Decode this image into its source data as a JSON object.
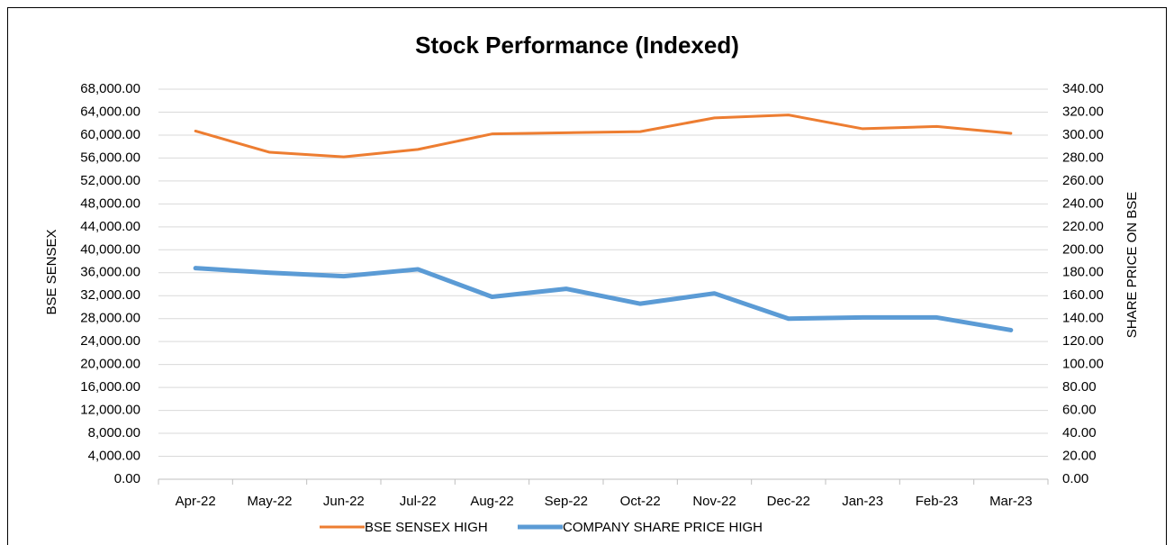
{
  "chart_data": {
    "type": "line",
    "title": "Stock Performance (Indexed)",
    "y_label": "BSE SENSEX",
    "y2_label": "SHARE PRICE ON BSE",
    "categories": [
      "Apr-22",
      "May-22",
      "Jun-22",
      "Jul-22",
      "Aug-22",
      "Sep-22",
      "Oct-22",
      "Nov-22",
      "Dec-22",
      "Jan-23",
      "Feb-23",
      "Mar-23"
    ],
    "series": [
      {
        "name": "BSE SENSEX HIGH",
        "color": "#ed7d31",
        "axis": "y",
        "values": [
          60700,
          57000,
          56200,
          57500,
          60200,
          60400,
          60600,
          63000,
          63500,
          61100,
          61500,
          60300
        ]
      },
      {
        "name": "COMPANY SHARE PRICE HIGH",
        "color": "#5b9bd5",
        "axis": "y2",
        "values": [
          184,
          180,
          177,
          183,
          159,
          166,
          153,
          162,
          140,
          141,
          141,
          130
        ]
      }
    ],
    "ylim": [
      0,
      68000
    ],
    "yticks": [
      {
        "value": 0,
        "label": "0.00"
      },
      {
        "value": 4000,
        "label": "4,000.00"
      },
      {
        "value": 8000,
        "label": "8,000.00"
      },
      {
        "value": 12000,
        "label": "12,000.00"
      },
      {
        "value": 16000,
        "label": "16,000.00"
      },
      {
        "value": 20000,
        "label": "20,000.00"
      },
      {
        "value": 24000,
        "label": "24,000.00"
      },
      {
        "value": 28000,
        "label": "28,000.00"
      },
      {
        "value": 32000,
        "label": "32,000.00"
      },
      {
        "value": 36000,
        "label": "36,000.00"
      },
      {
        "value": 40000,
        "label": "40,000.00"
      },
      {
        "value": 44000,
        "label": "44,000.00"
      },
      {
        "value": 48000,
        "label": "48,000.00"
      },
      {
        "value": 52000,
        "label": "52,000.00"
      },
      {
        "value": 56000,
        "label": "56,000.00"
      },
      {
        "value": 60000,
        "label": "60,000.00"
      },
      {
        "value": 64000,
        "label": "64,000.00"
      },
      {
        "value": 68000,
        "label": "68,000.00"
      }
    ],
    "y2lim": [
      0,
      340
    ],
    "y2ticks": [
      {
        "value": 0,
        "label": "0.00"
      },
      {
        "value": 20,
        "label": "20.00"
      },
      {
        "value": 40,
        "label": "40.00"
      },
      {
        "value": 60,
        "label": "60.00"
      },
      {
        "value": 80,
        "label": "80.00"
      },
      {
        "value": 100,
        "label": "100.00"
      },
      {
        "value": 120,
        "label": "120.00"
      },
      {
        "value": 140,
        "label": "140.00"
      },
      {
        "value": 160,
        "label": "160.00"
      },
      {
        "value": 180,
        "label": "180.00"
      },
      {
        "value": 200,
        "label": "200.00"
      },
      {
        "value": 220,
        "label": "220.00"
      },
      {
        "value": 240,
        "label": "240.00"
      },
      {
        "value": 260,
        "label": "260.00"
      },
      {
        "value": 280,
        "label": "280.00"
      },
      {
        "value": 300,
        "label": "300.00"
      },
      {
        "value": 320,
        "label": "320.00"
      },
      {
        "value": 340,
        "label": "340.00"
      }
    ],
    "grid": true,
    "legend": "bottom"
  }
}
